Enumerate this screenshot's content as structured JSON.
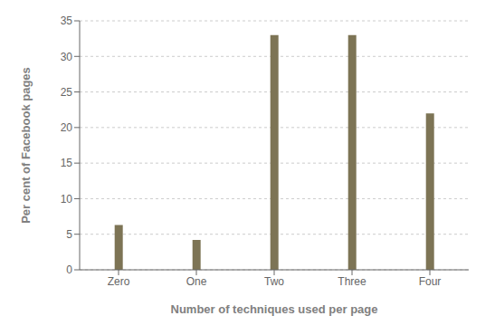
{
  "chart_data": {
    "type": "bar",
    "categories": [
      "Zero",
      "One",
      "Two",
      "Three",
      "Four"
    ],
    "values": [
      6.3,
      4.2,
      33.0,
      33.0,
      22.0
    ],
    "color": "#7d7455",
    "xlabel": "Number of techniques used per page",
    "ylabel": "Per cent of Facebook pages",
    "ylim": [
      0,
      35
    ],
    "yticks": [
      0,
      5,
      10,
      15,
      20,
      25,
      30,
      35
    ],
    "grid": true
  }
}
